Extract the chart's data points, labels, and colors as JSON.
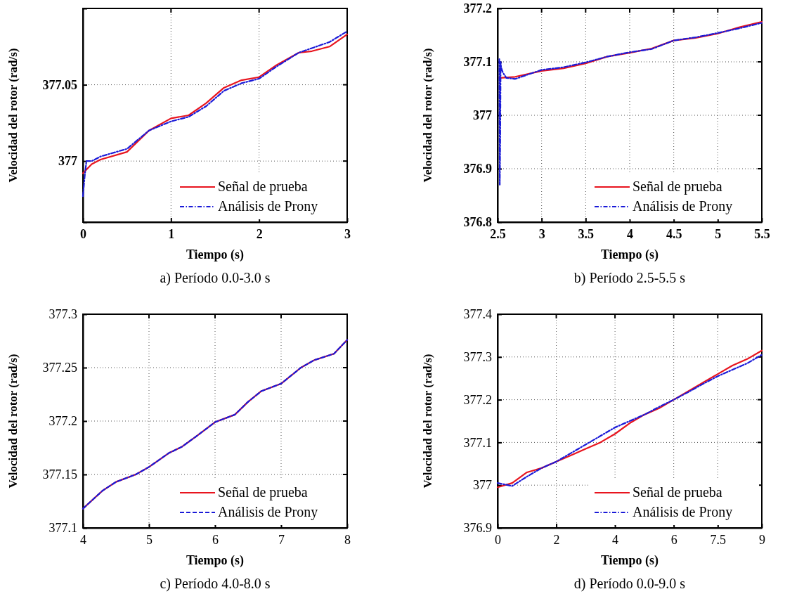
{
  "chart_data": [
    {
      "type": "line",
      "xlabel": "Tiempo (s)",
      "ylabel": "Velocidad del rotor (rad/s)",
      "xlim": [
        0,
        3
      ],
      "xticks": [
        0,
        1,
        2,
        3
      ],
      "ylim": [
        376.96,
        377.1
      ],
      "yticks": [
        {
          "value": 376.96,
          "label": null
        },
        377,
        377.05,
        {
          "value": 377.1,
          "label": null
        }
      ],
      "grid": true,
      "legend": "bottom right",
      "annotations": [
        "a) Período 0.0-3.0 s"
      ],
      "series": [
        {
          "name": "Señal de prueba",
          "color": "#e8141e",
          "line_style": "solid",
          "x": [
            0,
            0.1,
            0.2,
            0.5,
            0.75,
            1,
            1.2,
            1.4,
            1.6,
            1.8,
            2,
            2.2,
            2.45,
            2.6,
            2.8,
            3
          ],
          "values": [
            376.992,
            376.998,
            377.001,
            377.006,
            377.02,
            377.028,
            377.03,
            377.038,
            377.048,
            377.053,
            377.055,
            377.063,
            377.071,
            377.072,
            377.075,
            377.083
          ]
        },
        {
          "name": "Análisis de Prony",
          "color": "#1a1ad8",
          "line_style": "dashdot",
          "x": [
            0,
            0.02,
            0.04,
            0.1,
            0.2,
            0.5,
            0.75,
            1,
            1.2,
            1.4,
            1.6,
            1.8,
            2,
            2.2,
            2.45,
            2.6,
            2.8,
            3
          ],
          "values": [
            376.977,
            376.99,
            377.0,
            377.0,
            377.003,
            377.008,
            377.02,
            377.026,
            377.029,
            377.036,
            377.046,
            377.051,
            377.054,
            377.062,
            377.071,
            377.074,
            377.078,
            377.085
          ]
        }
      ]
    },
    {
      "type": "line",
      "xlabel": "Tiempo (s)",
      "ylabel": "Velocidad del rotor (rad/s)",
      "xlim": [
        2.5,
        5.5
      ],
      "xticks": [
        2.5,
        3,
        3.5,
        4,
        4.5,
        5,
        5.5
      ],
      "ylim": [
        376.8,
        377.2
      ],
      "yticks": [
        376.8,
        376.9,
        377,
        377.1,
        377.2
      ],
      "grid": true,
      "legend": "bottom right",
      "annotations": [
        "b)  Período 2.5-5.5 s"
      ],
      "series": [
        {
          "name": "Señal de prueba",
          "color": "#e8141e",
          "line_style": "solid",
          "x": [
            2.52,
            2.52,
            2.7,
            3,
            3.25,
            3.5,
            3.75,
            4,
            4.25,
            4.5,
            4.75,
            5,
            5.25,
            5.5
          ],
          "values": [
            377.07,
            377.07,
            377.072,
            377.083,
            377.088,
            377.097,
            377.11,
            377.117,
            377.125,
            377.14,
            377.145,
            377.153,
            377.165,
            377.175
          ]
        },
        {
          "name": "Análisis de Prony",
          "color": "#1a1ad8",
          "line_style": "dashdot",
          "x": [
            2.52,
            2.525,
            2.53,
            2.535,
            2.54,
            2.56,
            2.6,
            2.7,
            3,
            3.25,
            3.5,
            3.75,
            4,
            4.25,
            4.5,
            4.75,
            5,
            5.25,
            5.5
          ],
          "values": [
            377.105,
            376.87,
            376.95,
            377.1,
            377.09,
            377.08,
            377.07,
            377.068,
            377.085,
            377.09,
            377.099,
            377.11,
            377.118,
            377.124,
            377.14,
            377.146,
            377.154,
            377.163,
            377.173
          ]
        }
      ]
    },
    {
      "type": "line",
      "xlabel": "Tiempo (s)",
      "ylabel": "Velocidad del rotor (rad/s)",
      "xlim": [
        4,
        8
      ],
      "xticks": [
        4,
        5,
        6,
        7,
        8
      ],
      "ylim": [
        377.1,
        377.3
      ],
      "yticks": [
        377.1,
        377.15,
        377.2,
        377.25,
        377.3
      ],
      "grid": true,
      "legend": "bottom right",
      "annotations": [
        "c) Período 4.0-8.0 s"
      ],
      "series": [
        {
          "name": "Señal de prueba",
          "color": "#e8141e",
          "line_style": "solid",
          "x": [
            4,
            4.3,
            4.5,
            4.8,
            5,
            5.3,
            5.5,
            5.7,
            6,
            6.3,
            6.5,
            6.7,
            7,
            7.3,
            7.5,
            7.8,
            8
          ],
          "values": [
            377.118,
            377.135,
            377.143,
            377.15,
            377.157,
            377.17,
            377.176,
            377.185,
            377.199,
            377.206,
            377.218,
            377.228,
            377.235,
            377.25,
            377.257,
            377.263,
            377.276
          ]
        },
        {
          "name": "Análisis de Prony",
          "color": "#1a1ad8",
          "line_style": "dashed",
          "x": [
            4,
            4.3,
            4.5,
            4.8,
            5,
            5.3,
            5.5,
            5.7,
            6,
            6.3,
            6.5,
            6.7,
            7,
            7.3,
            7.5,
            7.8,
            8
          ],
          "values": [
            377.118,
            377.135,
            377.143,
            377.15,
            377.157,
            377.17,
            377.176,
            377.185,
            377.199,
            377.206,
            377.218,
            377.228,
            377.235,
            377.25,
            377.257,
            377.263,
            377.276
          ]
        }
      ]
    },
    {
      "type": "line",
      "xlabel": "Tiempo (s)",
      "ylabel": "Velocidad del rotor (rad/s)",
      "xlim": [
        0,
        9
      ],
      "xticks": [
        0,
        2,
        4,
        6,
        7.5,
        9
      ],
      "ylim": [
        376.9,
        377.4
      ],
      "yticks": [
        376.9,
        377,
        377.1,
        377.2,
        377.3,
        377.4
      ],
      "grid": true,
      "legend": "bottom right",
      "annotations": [
        "d) Período 0.0-9.0 s"
      ],
      "series": [
        {
          "name": "Señal de prueba",
          "color": "#e8141e",
          "line_style": "solid",
          "x": [
            0,
            0.5,
            1,
            1.5,
            2,
            2.5,
            3,
            3.5,
            4,
            4.5,
            5,
            5.5,
            6,
            6.5,
            7,
            7.5,
            8,
            8.5,
            9
          ],
          "values": [
            376.995,
            377.005,
            377.03,
            377.04,
            377.055,
            377.07,
            377.085,
            377.1,
            377.12,
            377.145,
            377.165,
            377.18,
            377.2,
            377.22,
            377.24,
            377.26,
            377.28,
            377.295,
            377.315
          ]
        },
        {
          "name": "Análisis de Prony",
          "color": "#1a1ad8",
          "line_style": "dashdot",
          "x": [
            0,
            0.5,
            1,
            1.5,
            2,
            2.5,
            3,
            3.5,
            4,
            4.5,
            5,
            5.5,
            6,
            6.5,
            7,
            7.5,
            8,
            8.5,
            9
          ],
          "values": [
            377.005,
            376.998,
            377.02,
            377.04,
            377.055,
            377.075,
            377.095,
            377.115,
            377.135,
            377.15,
            377.165,
            377.183,
            377.2,
            377.218,
            377.237,
            377.255,
            377.27,
            377.285,
            377.305
          ]
        }
      ]
    }
  ]
}
